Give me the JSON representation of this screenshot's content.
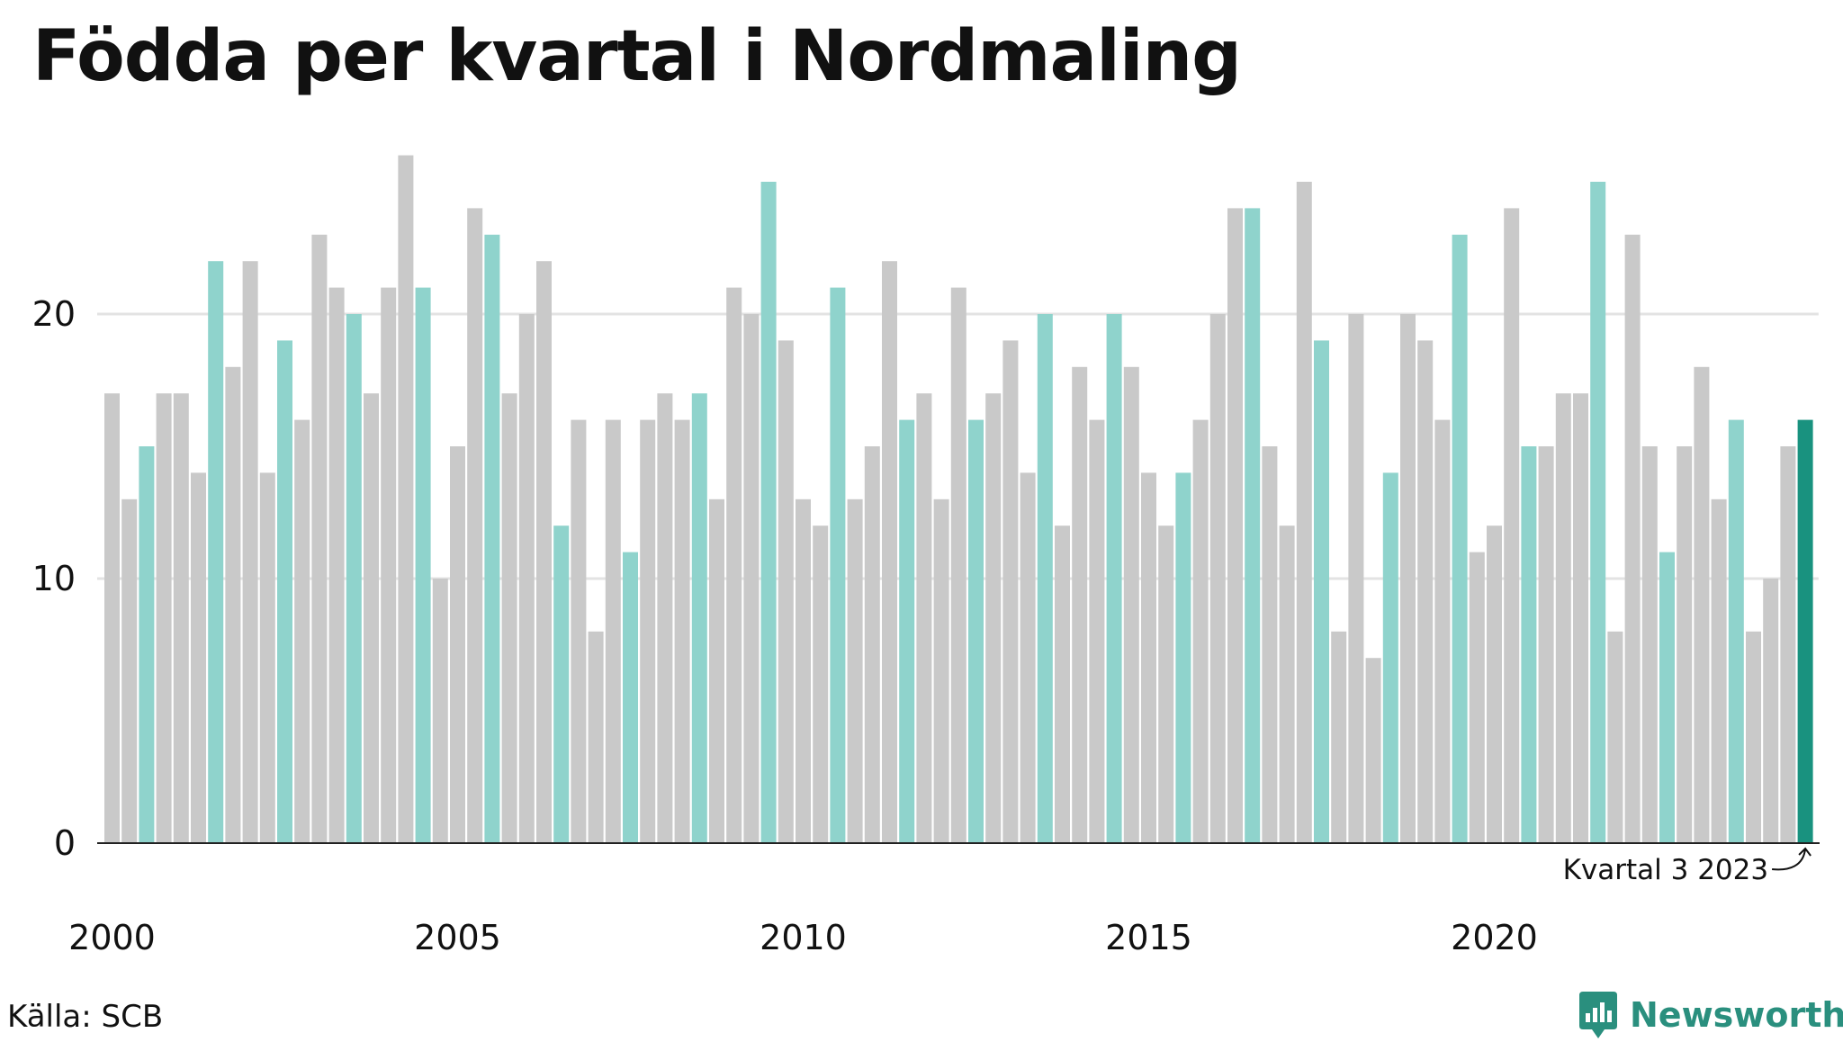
{
  "title": "Födda per kvartal i Nordmaling",
  "source": "Källa: SCB",
  "brand": "Newsworthy",
  "colors": {
    "default_bar": "#c9c9c9",
    "q3_bar": "#8fd3cc",
    "latest_bar": "#19927f",
    "grid": "#e3e3e3",
    "axis": "#222222",
    "brand": "#2a8f7e"
  },
  "chart_data": {
    "type": "bar",
    "start": "2000 Q1",
    "frequency": "quarterly",
    "values": [
      17,
      13,
      15,
      17,
      17,
      14,
      22,
      18,
      22,
      14,
      19,
      16,
      23,
      21,
      20,
      17,
      21,
      26,
      21,
      10,
      15,
      24,
      23,
      17,
      20,
      22,
      12,
      16,
      8,
      16,
      11,
      16,
      17,
      16,
      17,
      13,
      21,
      20,
      25,
      19,
      13,
      12,
      21,
      13,
      15,
      22,
      16,
      17,
      13,
      21,
      16,
      17,
      19,
      14,
      20,
      12,
      18,
      16,
      20,
      18,
      14,
      12,
      14,
      16,
      20,
      24,
      24,
      15,
      12,
      25,
      19,
      8,
      20,
      7,
      14,
      20,
      19,
      16,
      23,
      11,
      12,
      24,
      15,
      15,
      17,
      17,
      25,
      8,
      23,
      15,
      11,
      15,
      18,
      13,
      16,
      8,
      10,
      15,
      16
    ],
    "highlight": "Q3 bars in light teal, latest bar in dark teal",
    "x_ticks": [
      "2000",
      "2005",
      "2010",
      "2015",
      "2020"
    ],
    "y_ticks": [
      "0",
      "10",
      "20"
    ],
    "ylim": [
      0,
      26
    ],
    "grid": true,
    "annotation": "Kvartal 3 2023"
  }
}
